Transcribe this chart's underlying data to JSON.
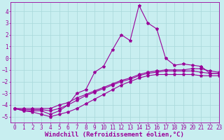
{
  "xlabel": "Windchill (Refroidissement éolien,°C)",
  "bg_color": "#c8eef0",
  "line_color": "#990099",
  "xlim": [
    -0.5,
    23
  ],
  "ylim": [
    -5.5,
    4.8
  ],
  "xticks": [
    0,
    1,
    2,
    3,
    4,
    5,
    6,
    7,
    8,
    9,
    10,
    11,
    12,
    13,
    14,
    15,
    16,
    17,
    18,
    19,
    20,
    21,
    22,
    23
  ],
  "yticks": [
    -5,
    -4,
    -3,
    -2,
    -1,
    0,
    1,
    2,
    3,
    4
  ],
  "series": [
    {
      "x": [
        0,
        1,
        2,
        3,
        4,
        5,
        6,
        7,
        8,
        9,
        10,
        11,
        12,
        13,
        14,
        15,
        16,
        17,
        18,
        19,
        20,
        21,
        22,
        23
      ],
      "y": [
        -4.3,
        -4.5,
        -4.5,
        -4.5,
        -4.8,
        -4.5,
        -4.0,
        -3.0,
        -2.7,
        -1.2,
        -0.7,
        0.7,
        2.0,
        1.5,
        4.5,
        3.0,
        2.5,
        0.0,
        -0.6,
        -0.5,
        -0.6,
        -0.7,
        -1.3,
        -1.3
      ]
    },
    {
      "x": [
        0,
        1,
        2,
        3,
        4,
        5,
        6,
        7,
        8,
        9,
        10,
        11,
        12,
        13,
        14,
        15,
        16,
        17,
        18,
        19,
        20,
        21,
        22,
        23
      ],
      "y": [
        -4.3,
        -4.3,
        -4.3,
        -4.3,
        -4.3,
        -4.0,
        -3.8,
        -3.4,
        -3.1,
        -2.8,
        -2.5,
        -2.2,
        -1.9,
        -1.7,
        -1.4,
        -1.2,
        -1.1,
        -1.0,
        -1.0,
        -1.0,
        -0.9,
        -0.9,
        -1.1,
        -1.2
      ]
    },
    {
      "x": [
        0,
        1,
        2,
        3,
        4,
        5,
        6,
        7,
        8,
        9,
        10,
        11,
        12,
        13,
        14,
        15,
        16,
        17,
        18,
        19,
        20,
        21,
        22,
        23
      ],
      "y": [
        -4.3,
        -4.4,
        -4.4,
        -4.4,
        -4.5,
        -4.3,
        -4.0,
        -3.6,
        -3.2,
        -2.9,
        -2.6,
        -2.3,
        -2.0,
        -1.8,
        -1.5,
        -1.3,
        -1.2,
        -1.1,
        -1.1,
        -1.1,
        -1.1,
        -1.2,
        -1.3,
        -1.3
      ]
    },
    {
      "x": [
        0,
        1,
        2,
        3,
        4,
        5,
        6,
        7,
        8,
        9,
        10,
        11,
        12,
        13,
        14,
        15,
        16,
        17,
        18,
        19,
        20,
        21,
        22,
        23
      ],
      "y": [
        -4.3,
        -4.5,
        -4.6,
        -4.8,
        -5.0,
        -4.8,
        -4.6,
        -4.3,
        -3.9,
        -3.5,
        -3.1,
        -2.7,
        -2.3,
        -2.0,
        -1.7,
        -1.5,
        -1.4,
        -1.4,
        -1.4,
        -1.4,
        -1.4,
        -1.5,
        -1.5,
        -1.5
      ]
    }
  ],
  "grid_color": "#a8d8da",
  "marker_size": 3,
  "linewidth": 0.8,
  "xlabel_fontsize": 6.5,
  "tick_fontsize": 5.5
}
